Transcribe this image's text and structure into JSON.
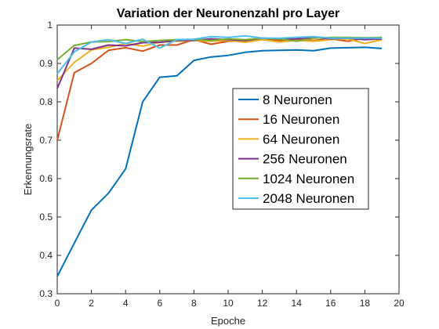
{
  "chart_data": {
    "type": "line",
    "title": "Variation der Neuronenzahl pro Layer",
    "xlabel": "Epoche",
    "ylabel": "Erkennungsrate",
    "xlim": [
      0,
      20
    ],
    "ylim": [
      0.3,
      1
    ],
    "xticks": [
      0,
      2,
      4,
      6,
      8,
      10,
      12,
      14,
      16,
      18,
      20
    ],
    "yticks": [
      0.3,
      0.4,
      0.5,
      0.6,
      0.7,
      0.8,
      0.9,
      1
    ],
    "ytick_labels": [
      "0.3",
      "0.4",
      "0.5",
      "0.6",
      "0.7",
      "0.8",
      "0.9",
      "1"
    ],
    "grid": false,
    "legend_position": "center-right",
    "x": [
      0,
      1,
      2,
      3,
      4,
      5,
      6,
      7,
      8,
      9,
      10,
      11,
      12,
      13,
      14,
      15,
      16,
      17,
      18,
      19
    ],
    "series": [
      {
        "name": "8 Neuronen",
        "color": "#0072BD",
        "values": [
          0.345,
          0.432,
          0.518,
          0.562,
          0.625,
          0.8,
          0.864,
          0.868,
          0.908,
          0.917,
          0.921,
          0.929,
          0.933,
          0.934,
          0.935,
          0.933,
          0.94,
          0.941,
          0.942,
          0.939
        ]
      },
      {
        "name": "16 Neuronen",
        "color": "#D95319",
        "values": [
          0.7,
          0.876,
          0.9,
          0.934,
          0.941,
          0.932,
          0.948,
          0.948,
          0.962,
          0.95,
          0.958,
          0.958,
          0.962,
          0.96,
          0.962,
          0.96,
          0.964,
          0.958,
          0.966,
          0.962
        ]
      },
      {
        "name": "64 Neuronen",
        "color": "#EDB120",
        "values": [
          0.855,
          0.903,
          0.935,
          0.942,
          0.952,
          0.945,
          0.955,
          0.958,
          0.96,
          0.958,
          0.96,
          0.955,
          0.962,
          0.956,
          0.96,
          0.958,
          0.962,
          0.964,
          0.952,
          0.962
        ]
      },
      {
        "name": "256 Neuronen",
        "color": "#7E2F8E",
        "values": [
          0.835,
          0.94,
          0.937,
          0.948,
          0.946,
          0.954,
          0.955,
          0.96,
          0.96,
          0.964,
          0.962,
          0.96,
          0.966,
          0.964,
          0.964,
          0.968,
          0.964,
          0.966,
          0.962,
          0.964
        ]
      },
      {
        "name": "1024 Neuronen",
        "color": "#77AC30",
        "values": [
          0.91,
          0.947,
          0.956,
          0.957,
          0.962,
          0.957,
          0.96,
          0.962,
          0.962,
          0.96,
          0.964,
          0.962,
          0.966,
          0.964,
          0.958,
          0.966,
          0.968,
          0.968,
          0.967,
          0.968
        ]
      },
      {
        "name": "2048 Neuronen",
        "color": "#4DBEEE",
        "values": [
          0.873,
          0.93,
          0.956,
          0.962,
          0.952,
          0.963,
          0.94,
          0.962,
          0.963,
          0.97,
          0.968,
          0.972,
          0.966,
          0.966,
          0.968,
          0.97,
          0.966,
          0.966,
          0.966,
          0.966
        ]
      }
    ]
  }
}
